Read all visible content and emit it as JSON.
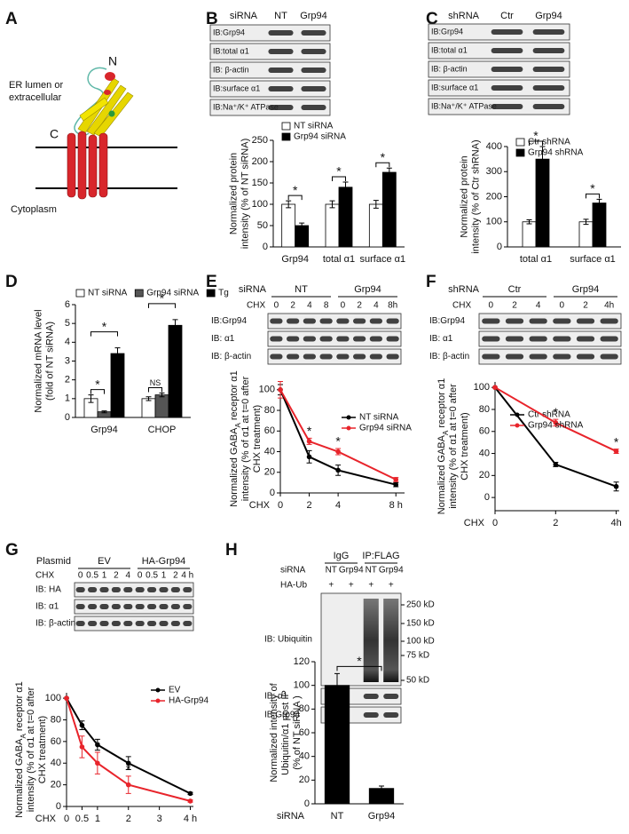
{
  "panel_labels": [
    "A",
    "B",
    "C",
    "D",
    "E",
    "F",
    "G",
    "H"
  ],
  "structure": {
    "n_label": "N",
    "c_label": "C",
    "lumen_label": [
      "ER lumen or",
      "extracellular"
    ],
    "cytoplasm_label": "Cytoplasm"
  },
  "blots": [
    {
      "header_label": "siRNA",
      "groups": [
        "NT",
        "Grp94"
      ],
      "rows": [
        "IB:Grp94",
        "IB:total α1",
        "IB: β-actin",
        "IB:surface α1",
        "IB:Na⁺/K⁺ ATPase"
      ]
    },
    {
      "header_label": "shRNA",
      "groups": [
        "Ctr",
        "Grp94"
      ],
      "rows": [
        "IB:Grp94",
        "IB:total α1",
        "IB: β-actin",
        "IB:surface α1",
        "IB:Na⁺/K⁺ ATPase"
      ]
    },
    {
      "header_label": "siRNA",
      "groups": [
        "NT",
        "Grp94"
      ],
      "lane_rows": [
        {
          "label": "CHX",
          "lanes": [
            "0",
            "2",
            "4",
            "8",
            "0",
            "2",
            "4",
            "8h"
          ]
        }
      ],
      "rows": [
        "IB:Grp94",
        "IB: α1",
        "IB: β-actin"
      ]
    },
    {
      "header_label": "shRNA",
      "groups": [
        "Ctr",
        "Grp94"
      ],
      "lane_rows": [
        {
          "label": "CHX",
          "lanes": [
            "0",
            "2",
            "4",
            "0",
            "2",
            "4h"
          ]
        }
      ],
      "rows": [
        "IB:Grp94",
        "IB: α1",
        "IB: β-actin"
      ]
    },
    {
      "header_label": "Plasmid",
      "groups": [
        "EV",
        "HA-Grp94"
      ],
      "lane_rows": [
        {
          "label": "CHX",
          "lanes": [
            "0",
            "0.5",
            "1",
            "2",
            "4",
            "0",
            "0.5",
            "1",
            "2",
            "4 h"
          ]
        }
      ],
      "rows": [
        "IB: HA",
        "IB: α1",
        "IB: β-actin"
      ]
    },
    {
      "groups": [
        "IgG",
        "IP:FLAG"
      ],
      "lane_rows": [
        {
          "label": "siRNA",
          "lanes": [
            "NT",
            "Grp94",
            "NT",
            "Grp94"
          ]
        },
        {
          "label": "HA-Ub",
          "lanes": [
            "+",
            "+",
            "+",
            "+"
          ]
        }
      ],
      "rows": [
        "IB: Ubiquitin",
        "IB: α1",
        "IB:Grp94"
      ],
      "markers": [
        "250 kD",
        "150 kD",
        "100 kD",
        "75 kD",
        "50 kD"
      ]
    }
  ],
  "chart_data": [
    {
      "type": "bar",
      "y_label": [
        "Normalized protein",
        "intensity (% of NT siRNA)"
      ],
      "categories": [
        "Grp94",
        "total α1",
        "surface α1"
      ],
      "series": [
        {
          "name": "NT siRNA",
          "color": "#ffffff",
          "values": [
            100,
            100,
            100
          ],
          "errors": [
            8,
            8,
            9
          ]
        },
        {
          "name": "Grp94 siRNA",
          "color": "#000000",
          "values": [
            50,
            140,
            175
          ],
          "errors": [
            6,
            12,
            10
          ]
        }
      ],
      "ylim": [
        0,
        250
      ],
      "yticks": [
        0,
        50,
        100,
        150,
        200,
        250
      ],
      "annotations": [
        "*",
        "*",
        "*"
      ]
    },
    {
      "type": "bar",
      "y_label": [
        "Normalized protein",
        "intensity (% of Ctr shRNA)"
      ],
      "categories": [
        "total α1",
        "surface α1"
      ],
      "series": [
        {
          "name": "Ctr shRNA",
          "color": "#ffffff",
          "values": [
            100,
            100
          ],
          "errors": [
            8,
            10
          ]
        },
        {
          "name": "Grp94 shRNA",
          "color": "#000000",
          "values": [
            350,
            175
          ],
          "errors": [
            50,
            15
          ]
        }
      ],
      "ylim": [
        0,
        400
      ],
      "yticks": [
        0,
        100,
        200,
        300,
        400
      ],
      "annotations": [
        "*",
        "*"
      ]
    },
    {
      "type": "bar",
      "y_label": [
        "Normalized mRNA level",
        "(fold of NT siRNA)"
      ],
      "categories": [
        "Grp94",
        "CHOP"
      ],
      "series": [
        {
          "name": "NT siRNA",
          "color": "#ffffff",
          "values": [
            1,
            1
          ],
          "errors": [
            0.2,
            0.1
          ]
        },
        {
          "name": "Grp94 siRNA",
          "color": "#555555",
          "values": [
            0.3,
            1.2
          ],
          "errors": [
            0.05,
            0.1
          ]
        },
        {
          "name": "Tg",
          "color": "#000000",
          "values": [
            3.4,
            4.9
          ],
          "errors": [
            0.3,
            0.3
          ]
        }
      ],
      "ylim": [
        0,
        6
      ],
      "yticks": [
        0,
        1,
        2,
        3,
        4,
        5,
        6
      ],
      "annotations": [
        "*",
        "*",
        "NS",
        "*"
      ]
    },
    {
      "type": "line",
      "y_label": [
        [
          "Normalized GABA",
          {
            "sub": "A"
          },
          " receptor α1"
        ],
        "intensity (% of α1 at t=0 after",
        "CHX treatment)"
      ],
      "x_label": "CHX",
      "x": [
        0,
        2,
        4,
        8
      ],
      "series": [
        {
          "name": "NT siRNA",
          "color": "#000000",
          "values": [
            100,
            35,
            22,
            8
          ],
          "errors": [
            5,
            6,
            5,
            2
          ]
        },
        {
          "name": "Grp94 siRNA",
          "color": "#e8242b",
          "values": [
            100,
            50,
            40,
            13
          ],
          "errors": [
            8,
            3,
            3,
            2
          ]
        }
      ],
      "xlim": [
        0,
        8.6
      ],
      "xticks": [
        0,
        2,
        4,
        {
          "value": 8,
          "label": "8 h"
        }
      ],
      "ylim": [
        0,
        105
      ],
      "yticks": [
        0,
        20,
        40,
        60,
        80,
        100
      ],
      "annotations": [
        "*",
        "*"
      ]
    },
    {
      "type": "line",
      "y_label": [
        [
          "Normalized GABA",
          {
            "sub": "A"
          },
          " receptor α1"
        ],
        "intensity (% of α1 at t=0 after",
        "CHX treatment)"
      ],
      "x_label": "CHX",
      "x": [
        0,
        2,
        4
      ],
      "series": [
        {
          "name": "Ctr shRNA",
          "color": "#000000",
          "values": [
            100,
            30,
            10
          ],
          "errors": [
            0,
            2,
            4
          ]
        },
        {
          "name": "Grp94 shRNA",
          "color": "#e8242b",
          "values": [
            100,
            68,
            42
          ],
          "errors": [
            0,
            3,
            2
          ]
        }
      ],
      "xlim": [
        0,
        4.1
      ],
      "xticks": [
        0,
        2,
        {
          "value": 4,
          "label": "4h"
        }
      ],
      "ylim": [
        -12,
        105
      ],
      "yticks": [
        0,
        20,
        40,
        60,
        80,
        100
      ],
      "annotations": [
        "*",
        "*"
      ]
    },
    {
      "type": "line",
      "y_label": [
        [
          "Normalized GABA",
          {
            "sub": "A"
          },
          " receptor α1"
        ],
        "intensity (% of α1 at t=0 after",
        "CHX treatment)"
      ],
      "x_label": "CHX",
      "x": [
        0,
        0.5,
        1,
        2,
        4
      ],
      "series": [
        {
          "name": "EV",
          "color": "#000000",
          "values": [
            100,
            75,
            57,
            40,
            12
          ],
          "errors": [
            0,
            4,
            5,
            6,
            1
          ]
        },
        {
          "name": "HA-Grp94",
          "color": "#e8242b",
          "values": [
            100,
            55,
            40,
            20,
            5
          ],
          "errors": [
            0,
            10,
            10,
            8,
            1
          ]
        }
      ],
      "xlim": [
        0,
        4.1
      ],
      "xticks": [
        0,
        0.5,
        1,
        2,
        3,
        {
          "value": 4,
          "label": "4 h"
        }
      ],
      "ylim": [
        0,
        105
      ],
      "yticks": [
        0,
        20,
        40,
        60,
        80,
        100
      ],
      "annotations": [
        "*",
        "*"
      ]
    },
    {
      "type": "bar",
      "y_label": [
        "Normalized intensity of",
        "Ubiquitin/α1 post IP",
        "(% of NT siRNA )"
      ],
      "x_label": "siRNA",
      "categories": [
        "NT",
        "Grp94"
      ],
      "values": [
        100,
        13
      ],
      "errors": [
        10,
        2
      ],
      "color": "#000000",
      "ylim": [
        0,
        120
      ],
      "yticks": [
        0,
        20,
        40,
        60,
        80,
        100,
        120
      ],
      "annotations": [
        "*"
      ]
    }
  ]
}
